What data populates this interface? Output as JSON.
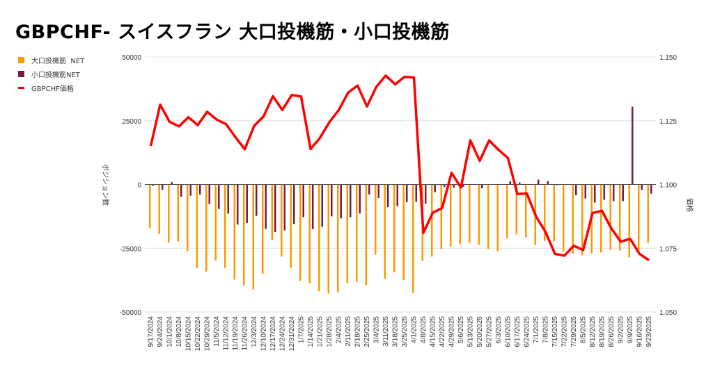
{
  "title": "GBPCHF- スイスフラン 大口投機筋・小口投機筋",
  "legend": [
    {
      "label": "大口投機筋  NET",
      "color": "#ff9900"
    },
    {
      "label": "小口投機筋NET",
      "color": "#741b47"
    },
    {
      "label": "GBPCHF価格",
      "color": "#ff0000"
    }
  ],
  "chart_data": {
    "type": "bar+line",
    "title": "GBPCHF- スイスフラン 大口投機筋・小口投機筋",
    "ylabel": "ポジション数",
    "y2label": "価格",
    "ylim": [
      -50000,
      50000
    ],
    "y2lim": [
      1.05,
      1.15
    ],
    "yticks": [
      "50000",
      "25000",
      "0",
      "-25000",
      "-50000"
    ],
    "y2ticks": [
      "1.150",
      "1.125",
      "1.100",
      "1.075",
      "1.050"
    ],
    "legend_position": "top-left",
    "grid": true,
    "categories": [
      "9/17/2024",
      "9/24/2024",
      "10/1/2024",
      "10/8/2024",
      "10/15/2024",
      "10/22/2024",
      "10/29/2024",
      "11/5/2024",
      "11/12/2024",
      "11/19/2024",
      "11/26/2024",
      "12/3/2024",
      "12/10/2024",
      "12/17/2024",
      "12/24/2024",
      "12/31/2024",
      "1/7/2025",
      "1/14/2025",
      "1/21/2025",
      "1/28/2025",
      "2/4/2025",
      "2/11/2025",
      "2/18/2025",
      "2/25/2025",
      "3/4/2025",
      "3/11/2025",
      "3/18/2025",
      "3/25/2025",
      "4/1/2025",
      "4/8/2025",
      "4/15/2025",
      "4/22/2025",
      "4/29/2025",
      "5/6/2025",
      "5/13/2025",
      "5/20/2025",
      "5/27/2025",
      "6/3/2025",
      "6/10/2025",
      "6/17/2025",
      "6/24/2025",
      "7/1/2025",
      "7/8/2025",
      "7/15/2025",
      "7/22/2025",
      "7/29/2025",
      "8/5/2025",
      "8/12/2025",
      "8/19/2025",
      "8/26/2025",
      "9/2/2025",
      "9/9/2025",
      "9/16/2025",
      "9/23/2025"
    ],
    "series": [
      {
        "name": "大口投機筋  NET",
        "type": "bar",
        "axis": "left",
        "values": [
          -17100,
          -19400,
          -22800,
          -22400,
          -26200,
          -32700,
          -34100,
          -29800,
          -32700,
          -37300,
          -39600,
          -41200,
          -35000,
          -21800,
          -28300,
          -32700,
          -37800,
          -38700,
          -41800,
          -42800,
          -42300,
          -38700,
          -38300,
          -39400,
          -27500,
          -37000,
          -34400,
          -37500,
          -42600,
          -30000,
          -28300,
          -25300,
          -24300,
          -23400,
          -22900,
          -23700,
          -25300,
          -26200,
          -21000,
          -19600,
          -20700,
          -23700,
          -22100,
          -22300,
          -26200,
          -27200,
          -27800,
          -27000,
          -26700,
          -25600,
          -25900,
          -28600,
          -25600,
          -22900
        ]
      },
      {
        "name": "小口投機筋NET",
        "type": "bar",
        "axis": "left",
        "values": [
          -500,
          -2100,
          900,
          -4800,
          -4400,
          -3900,
          -7700,
          -9600,
          -11400,
          -15700,
          -15100,
          -12300,
          -17400,
          -18700,
          -18000,
          -15500,
          -12800,
          -17500,
          -16600,
          -12500,
          -13300,
          -12800,
          -11400,
          -3900,
          -5300,
          -8900,
          -8500,
          -6900,
          -6800,
          -7500,
          -3000,
          -1000,
          -1200,
          -900,
          0,
          -1500,
          0,
          0,
          1300,
          800,
          0,
          1900,
          1300,
          -300,
          -200,
          -4200,
          -5500,
          -7100,
          -6000,
          -6500,
          -6500,
          30500,
          -2100,
          -3600
        ]
      },
      {
        "name": "GBPCHF価格",
        "type": "line",
        "axis": "right",
        "values": [
          1.1151,
          1.1313,
          1.1246,
          1.1228,
          1.1264,
          1.1233,
          1.1285,
          1.1255,
          1.1237,
          1.1186,
          1.1138,
          1.123,
          1.1267,
          1.1346,
          1.1292,
          1.1351,
          1.1345,
          1.1139,
          1.1183,
          1.1244,
          1.1292,
          1.136,
          1.1388,
          1.1306,
          1.1383,
          1.1427,
          1.1393,
          1.1422,
          1.142,
          1.081,
          1.0889,
          1.0908,
          1.1046,
          1.0988,
          1.1173,
          1.1093,
          1.1173,
          1.1136,
          1.1104,
          1.0963,
          1.0965,
          1.0874,
          1.0814,
          1.0728,
          1.0721,
          1.076,
          1.0743,
          1.0888,
          1.0897,
          1.0828,
          1.0776,
          1.0787,
          1.0728,
          1.0703
        ]
      }
    ]
  }
}
